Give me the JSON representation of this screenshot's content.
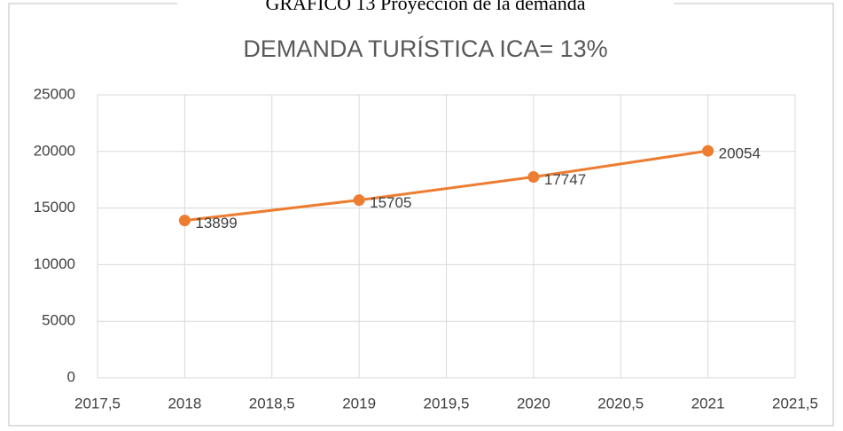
{
  "caption": "GRÁFICO 13 Proyección de la demanda",
  "chart_data": {
    "type": "line",
    "title": "DEMANDA TURÍSTICA ICA= 13%",
    "x": [
      2018,
      2019,
      2020,
      2021
    ],
    "series": [
      {
        "name": null,
        "color": "#ed7d31",
        "values": [
          13899,
          15705,
          17747,
          20054
        ]
      }
    ],
    "xlim": [
      2017.5,
      2021.5
    ],
    "xticks": [
      {
        "value": 2017.5,
        "label": "2017,5"
      },
      2018,
      {
        "value": 2018.5,
        "label": "2018,5"
      },
      2019,
      {
        "value": 2019.5,
        "label": "2019,5"
      },
      2020,
      {
        "value": 2020.5,
        "label": "2020,5"
      },
      2021,
      {
        "value": 2021.5,
        "label": "2021,5"
      }
    ],
    "ylim": [
      0,
      25000
    ],
    "yticks": [
      0,
      5000,
      10000,
      15000,
      20000,
      25000
    ],
    "grid": true
  }
}
